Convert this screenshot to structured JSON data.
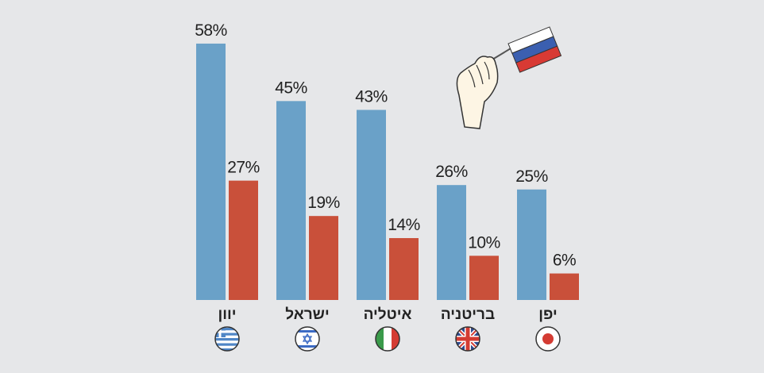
{
  "chart_data": {
    "type": "bar",
    "categories": [
      "יוון",
      "ישראל",
      "איטליה",
      "בריטניה",
      "יפן"
    ],
    "series": [
      {
        "color": "#6aa1c8",
        "values": [
          58,
          45,
          43,
          26,
          25
        ],
        "value_labels": [
          "58%",
          "45%",
          "43%",
          "26%",
          "25%"
        ]
      },
      {
        "color": "#c9503a",
        "values": [
          27,
          19,
          14,
          10,
          6
        ],
        "value_labels": [
          "27%",
          "19%",
          "14%",
          "10%",
          "6%"
        ]
      }
    ]
  }
}
